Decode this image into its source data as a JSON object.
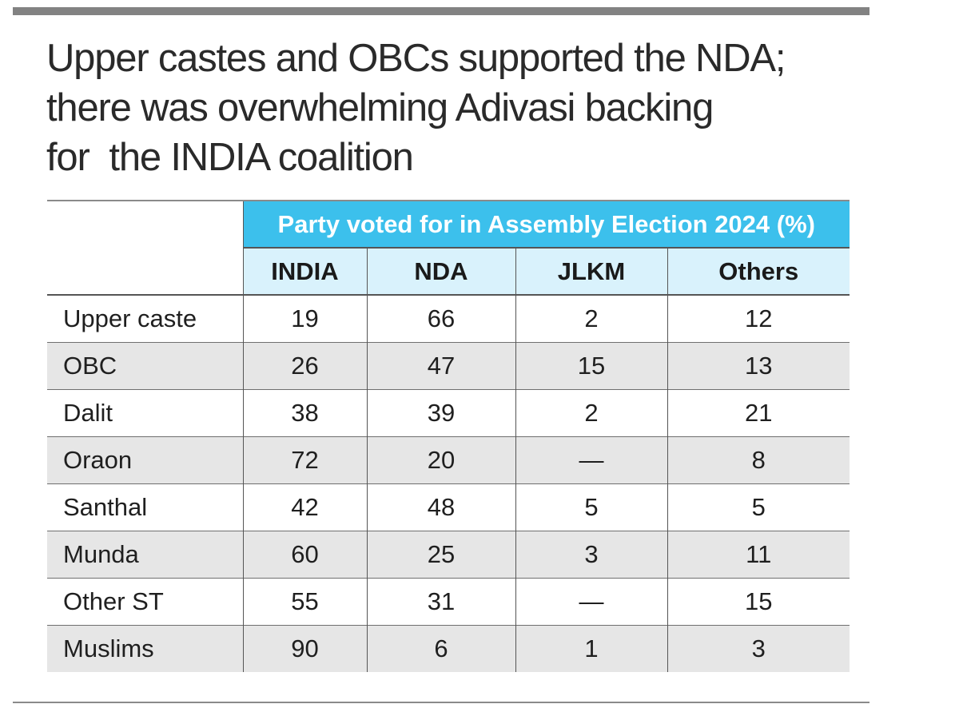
{
  "title_lines": [
    "Upper castes and OBCs supported the NDA;",
    "there was overwhelming Adivasi backing",
    "for  the INDIA coalition"
  ],
  "table": {
    "group_header": "Party voted for in Assembly Election 2024 (%)",
    "columns": [
      "INDIA",
      "NDA",
      "JLKM",
      "Others"
    ],
    "rows": [
      {
        "label": "Upper caste",
        "values": [
          "19",
          "66",
          "2",
          "12"
        ]
      },
      {
        "label": "OBC",
        "values": [
          "26",
          "47",
          "15",
          "13"
        ]
      },
      {
        "label": "Dalit",
        "values": [
          "38",
          "39",
          "2",
          "21"
        ]
      },
      {
        "label": "Oraon",
        "values": [
          "72",
          "20",
          "—",
          "8"
        ]
      },
      {
        "label": "Santhal",
        "values": [
          "42",
          "48",
          "5",
          "5"
        ]
      },
      {
        "label": "Munda",
        "values": [
          "60",
          "25",
          "3",
          "11"
        ]
      },
      {
        "label": "Other ST",
        "values": [
          "55",
          "31",
          "—",
          "15"
        ]
      },
      {
        "label": "Muslims",
        "values": [
          "90",
          "6",
          "1",
          "3"
        ]
      }
    ]
  },
  "colors": {
    "group_header_bg": "#3cc0ec",
    "column_header_bg": "#d9f2fc",
    "shaded_row_bg": "#e6e6e6",
    "rule": "#828282"
  },
  "chart_data": {
    "type": "table",
    "title": "Upper castes and OBCs supported the NDA; there was overwhelming Adivasi backing for  the INDIA coalition",
    "group_header": "Party voted for in Assembly Election 2024 (%)",
    "columns": [
      "INDIA",
      "NDA",
      "JLKM",
      "Others"
    ],
    "categories": [
      "Upper caste",
      "OBC",
      "Dalit",
      "Oraon",
      "Santhal",
      "Munda",
      "Other ST",
      "Muslims"
    ],
    "series": [
      {
        "name": "INDIA",
        "values": [
          19,
          26,
          38,
          72,
          42,
          60,
          55,
          90
        ]
      },
      {
        "name": "NDA",
        "values": [
          66,
          47,
          39,
          20,
          48,
          25,
          31,
          6
        ]
      },
      {
        "name": "JLKM",
        "values": [
          2,
          15,
          2,
          null,
          5,
          3,
          null,
          1
        ]
      },
      {
        "name": "Others",
        "values": [
          12,
          13,
          21,
          8,
          5,
          11,
          15,
          3
        ]
      }
    ]
  }
}
